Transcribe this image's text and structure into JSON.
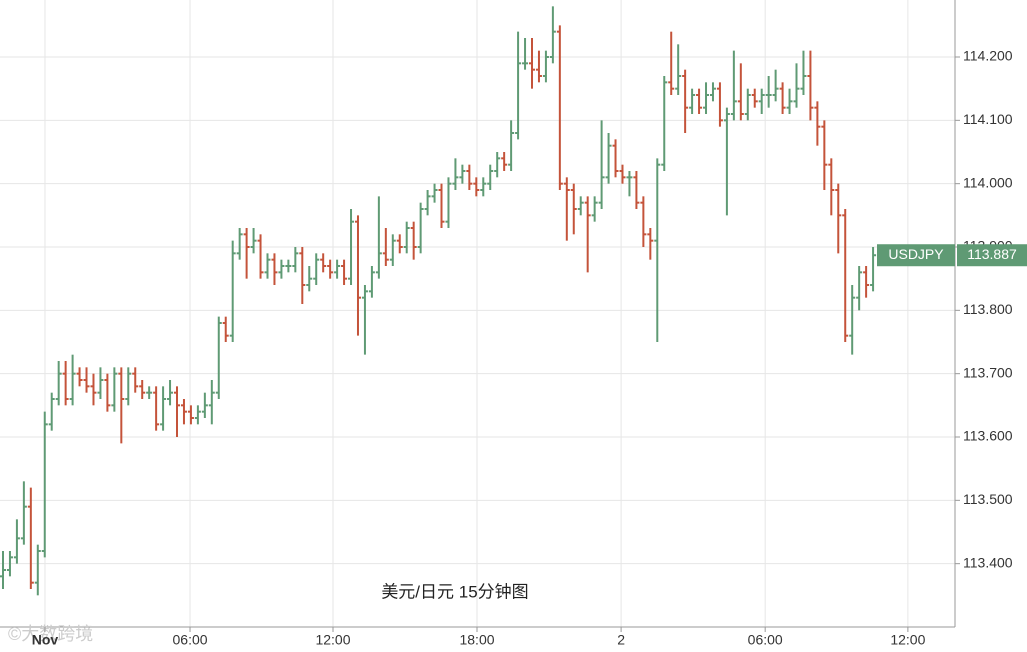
{
  "chart_data": {
    "type": "ohlc",
    "name": "USDJPY",
    "caption": "美元/日元 15分钟图",
    "watermark": "©大数跨境",
    "up_color": "#5f9a74",
    "down_color": "#c4533a",
    "grid": true,
    "ylim": [
      113.3,
      114.29
    ],
    "yticks": [
      {
        "value": 113.4,
        "label": "113.400"
      },
      {
        "value": 113.5,
        "label": "113.500"
      },
      {
        "value": 113.6,
        "label": "113.600"
      },
      {
        "value": 113.7,
        "label": "113.700"
      },
      {
        "value": 113.8,
        "label": "113.800"
      },
      {
        "value": 113.9,
        "label": "113.900"
      },
      {
        "value": 114.0,
        "label": "114.000"
      },
      {
        "value": 114.1,
        "label": "114.100"
      },
      {
        "value": 114.2,
        "label": "114.200"
      }
    ],
    "xlim": [
      -0.43,
      136.77
    ],
    "xticks": [
      {
        "value": 6.03,
        "label": "Nov"
      },
      {
        "value": 26.87,
        "label": "06:00"
      },
      {
        "value": 47.41,
        "label": "12:00"
      },
      {
        "value": 68.1,
        "label": "18:00"
      },
      {
        "value": 88.8,
        "label": "2"
      },
      {
        "value": 109.5,
        "label": "06:00"
      },
      {
        "value": 130.0,
        "label": "12:00"
      }
    ],
    "open": [
      113.38,
      113.39,
      113.41,
      113.44,
      113.49,
      113.37,
      113.42,
      113.62,
      113.66,
      113.7,
      113.66,
      113.7,
      113.69,
      113.68,
      113.67,
      113.69,
      113.65,
      113.7,
      113.66,
      113.7,
      113.68,
      113.67,
      113.67,
      113.62,
      113.66,
      113.67,
      113.65,
      113.64,
      113.63,
      113.64,
      113.65,
      113.67,
      113.78,
      113.76,
      113.89,
      113.92,
      113.9,
      113.91,
      113.86,
      113.88,
      113.86,
      113.87,
      113.87,
      113.89,
      113.84,
      113.85,
      113.88,
      113.87,
      113.86,
      113.87,
      113.85,
      113.94,
      113.82,
      113.83,
      113.86,
      113.89,
      113.88,
      113.91,
      113.9,
      113.93,
      113.9,
      113.96,
      113.98,
      113.99,
      113.94,
      114.0,
      114.01,
      114.02,
      114.0,
      113.99,
      114.0,
      114.02,
      114.04,
      114.03,
      114.08,
      114.19,
      114.19,
      114.18,
      114.17,
      114.2,
      114.24,
      114.0,
      113.99,
      113.96,
      113.97,
      113.95,
      113.97,
      114.01,
      114.06,
      114.02,
      114.01,
      114.01,
      113.97,
      113.92,
      113.91,
      114.03,
      114.16,
      114.15,
      114.17,
      114.12,
      114.14,
      114.12,
      114.14,
      114.15,
      114.1,
      114.11,
      114.13,
      114.11,
      114.14,
      114.13,
      114.14,
      114.14,
      114.15,
      114.12,
      114.13,
      114.15,
      114.17,
      114.12,
      114.09,
      114.03,
      113.99,
      113.95,
      113.76,
      113.82,
      113.86,
      113.84
    ],
    "high": [
      113.42,
      113.42,
      113.47,
      113.53,
      113.52,
      113.43,
      113.64,
      113.67,
      113.72,
      113.72,
      113.73,
      113.71,
      113.71,
      113.7,
      113.71,
      113.7,
      113.71,
      113.71,
      113.71,
      113.71,
      113.69,
      113.68,
      113.68,
      113.68,
      113.69,
      113.68,
      113.66,
      113.65,
      113.65,
      113.67,
      113.69,
      113.79,
      113.79,
      113.91,
      113.93,
      113.93,
      113.93,
      113.92,
      113.89,
      113.89,
      113.88,
      113.88,
      113.9,
      113.9,
      113.87,
      113.89,
      113.89,
      113.88,
      113.88,
      113.88,
      113.96,
      113.95,
      113.84,
      113.87,
      113.98,
      113.93,
      113.92,
      113.92,
      113.94,
      113.94,
      113.97,
      113.99,
      114.0,
      114.0,
      114.01,
      114.04,
      114.03,
      114.03,
      114.01,
      114.01,
      114.03,
      114.05,
      114.05,
      114.1,
      114.24,
      114.23,
      114.23,
      114.21,
      114.21,
      114.28,
      114.25,
      114.01,
      114.0,
      113.98,
      113.98,
      113.98,
      114.1,
      114.08,
      114.07,
      114.03,
      114.02,
      114.02,
      113.98,
      113.93,
      114.04,
      114.17,
      114.24,
      114.22,
      114.18,
      114.15,
      114.15,
      114.16,
      114.16,
      114.16,
      114.12,
      114.21,
      114.19,
      114.15,
      114.15,
      114.15,
      114.17,
      114.18,
      114.16,
      114.15,
      114.19,
      114.21,
      114.21,
      114.13,
      114.1,
      114.04,
      114.0,
      113.96,
      113.84,
      113.87,
      113.87,
      113.9
    ],
    "low": [
      113.36,
      113.38,
      113.4,
      113.43,
      113.36,
      113.35,
      113.41,
      113.61,
      113.65,
      113.65,
      113.65,
      113.68,
      113.67,
      113.65,
      113.66,
      113.64,
      113.64,
      113.59,
      113.65,
      113.67,
      113.66,
      113.66,
      113.61,
      113.61,
      113.65,
      113.6,
      113.62,
      113.62,
      113.62,
      113.63,
      113.62,
      113.66,
      113.75,
      113.75,
      113.88,
      113.85,
      113.89,
      113.85,
      113.85,
      113.84,
      113.85,
      113.86,
      113.86,
      113.81,
      113.83,
      113.84,
      113.86,
      113.85,
      113.85,
      113.84,
      113.84,
      113.76,
      113.73,
      113.82,
      113.85,
      113.87,
      113.87,
      113.89,
      113.89,
      113.88,
      113.89,
      113.95,
      113.97,
      113.93,
      113.93,
      113.99,
      114.0,
      113.99,
      113.98,
      113.98,
      113.99,
      114.01,
      114.02,
      114.02,
      114.07,
      114.18,
      114.15,
      114.16,
      114.16,
      114.19,
      113.99,
      113.91,
      113.92,
      113.95,
      113.86,
      113.94,
      113.96,
      114.0,
      114.01,
      114.0,
      113.98,
      113.96,
      113.9,
      113.88,
      113.75,
      114.02,
      114.14,
      114.14,
      114.08,
      114.11,
      114.11,
      114.11,
      114.13,
      114.09,
      113.95,
      114.1,
      114.1,
      114.1,
      114.12,
      114.11,
      114.12,
      114.13,
      114.11,
      114.11,
      114.12,
      114.14,
      114.1,
      114.06,
      113.99,
      113.95,
      113.89,
      113.75,
      113.73,
      113.8,
      113.82,
      113.83
    ],
    "close": [
      113.39,
      113.41,
      113.44,
      113.49,
      113.37,
      113.42,
      113.62,
      113.66,
      113.7,
      113.66,
      113.7,
      113.69,
      113.68,
      113.67,
      113.69,
      113.65,
      113.7,
      113.66,
      113.7,
      113.68,
      113.67,
      113.67,
      113.62,
      113.66,
      113.67,
      113.65,
      113.64,
      113.63,
      113.64,
      113.65,
      113.67,
      113.78,
      113.76,
      113.89,
      113.92,
      113.9,
      113.91,
      113.86,
      113.88,
      113.86,
      113.87,
      113.87,
      113.89,
      113.84,
      113.85,
      113.88,
      113.87,
      113.86,
      113.87,
      113.85,
      113.94,
      113.82,
      113.83,
      113.86,
      113.89,
      113.88,
      113.91,
      113.9,
      113.93,
      113.9,
      113.96,
      113.98,
      113.99,
      113.94,
      114.0,
      114.01,
      114.02,
      114.0,
      113.99,
      114.0,
      114.02,
      114.04,
      114.03,
      114.08,
      114.19,
      114.19,
      114.18,
      114.17,
      114.2,
      114.24,
      114.0,
      113.99,
      113.96,
      113.97,
      113.95,
      113.97,
      114.01,
      114.06,
      114.02,
      114.01,
      114.01,
      113.97,
      113.92,
      113.91,
      114.03,
      114.16,
      114.15,
      114.17,
      114.12,
      114.14,
      114.12,
      114.14,
      114.15,
      114.1,
      114.11,
      114.13,
      114.11,
      114.14,
      114.13,
      114.14,
      114.14,
      114.15,
      114.12,
      114.13,
      114.15,
      114.17,
      114.12,
      114.09,
      114.03,
      113.99,
      113.95,
      113.76,
      113.82,
      113.86,
      113.84,
      113.887
    ]
  }
}
